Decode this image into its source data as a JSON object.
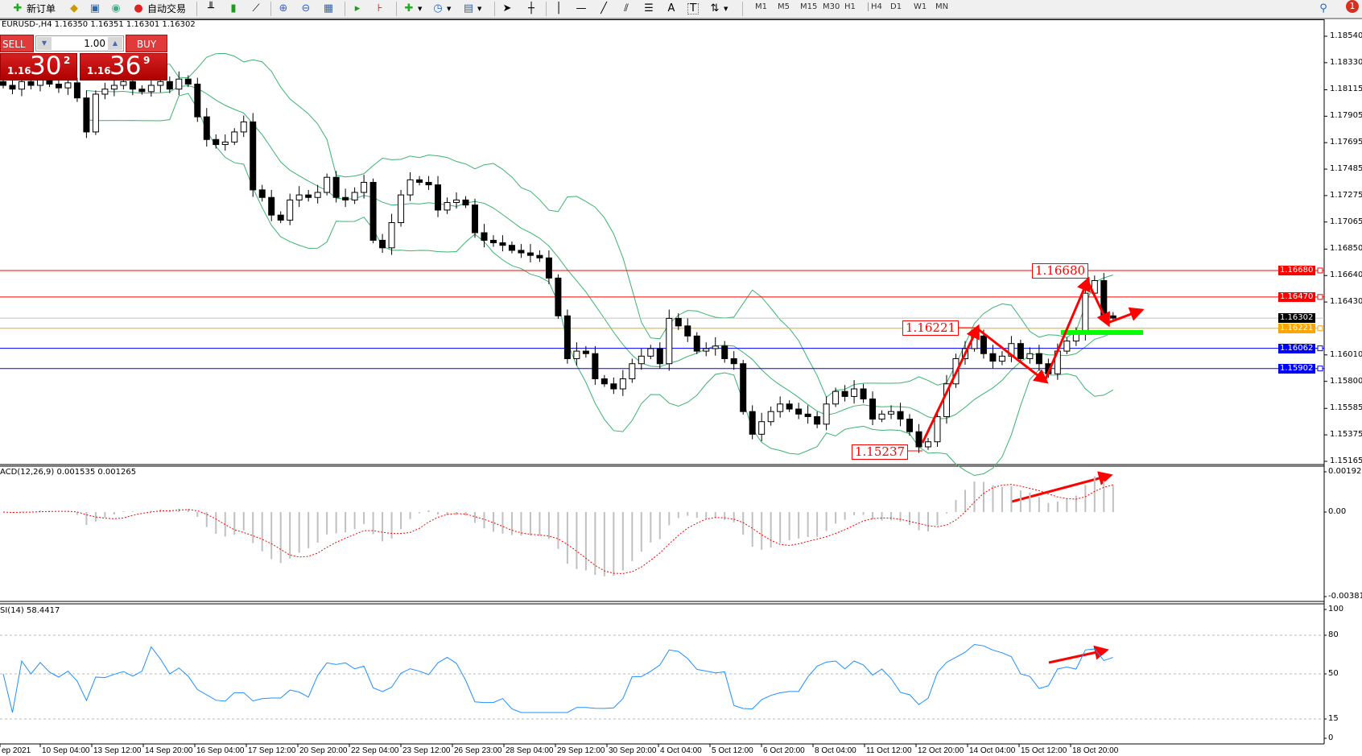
{
  "toolbar": {
    "new_order_label": "新订单",
    "auto_trading_label": "自动交易",
    "icons": [
      "new-order-icon",
      "metaeditor-icon",
      "market-icon",
      "signals-icon",
      "auto-trading-icon",
      "bar-chart-icon",
      "candlestick-icon",
      "line-chart-icon",
      "zoom-in-icon",
      "zoom-out-icon",
      "tile-windows-icon",
      "auto-scroll-icon",
      "chart-shift-icon",
      "indicators-icon",
      "periods-icon",
      "templates-icon",
      "cursor-icon",
      "crosshair-icon",
      "vertical-line-icon",
      "horizontal-line-icon",
      "trendline-icon",
      "equidistant-channel-icon",
      "fibonacci-icon",
      "text-icon",
      "text-label-icon",
      "arrows-icon",
      "search-icon",
      "notification-icon"
    ],
    "text_tool": "A",
    "label_tool": "T",
    "timeframes": [
      "M1",
      "M5",
      "M15",
      "M30",
      "H1",
      "H4",
      "D1",
      "W1",
      "MN"
    ],
    "active_timeframe": "H4",
    "notification_count": "1"
  },
  "chart_header": "EURUSD-,H4  1.16350 1.16351 1.16301 1.16302",
  "one_click": {
    "sell_label": "SELL",
    "buy_label": "BUY",
    "lot": "1.00",
    "sell_price": {
      "prefix": "1.16",
      "big": "30",
      "sup": "2"
    },
    "buy_price": {
      "prefix": "1.16",
      "big": "36",
      "sup": "9"
    }
  },
  "chart_data": {
    "type": "candlestick",
    "symbol": "EURUSD-",
    "timeframe": "H4",
    "price_ticks": [
      "1.18540",
      "1.18330",
      "1.18115",
      "1.17905",
      "1.17695",
      "1.17485",
      "1.17275",
      "1.17065",
      "1.16850",
      "1.16640",
      "1.16430",
      "1.16010",
      "1.15800",
      "1.15585",
      "1.15375",
      "1.15165"
    ],
    "ylim": [
      1.15165,
      1.1854
    ],
    "time_labels": [
      "ep 2021",
      "10 Sep 04:00",
      "13 Sep 12:00",
      "14 Sep 20:00",
      "16 Sep 04:00",
      "17 Sep 12:00",
      "20 Sep 20:00",
      "22 Sep 04:00",
      "23 Sep 12:00",
      "26 Sep 23:00",
      "28 Sep 04:00",
      "29 Sep 12:00",
      "30 Sep 20:00",
      "4 Oct 04:00",
      "5 Oct 12:00",
      "6 Oct 20:00",
      "8 Oct 04:00",
      "11 Oct 12:00",
      "12 Oct 20:00",
      "14 Oct 04:00",
      "15 Oct 12:00",
      "18 Oct 20:00"
    ],
    "closes": [
      1.1815,
      1.1812,
      1.1818,
      1.1815,
      1.182,
      1.1816,
      1.1813,
      1.1817,
      1.1805,
      1.1778,
      1.1808,
      1.1812,
      1.1815,
      1.1818,
      1.1812,
      1.181,
      1.1815,
      1.1818,
      1.1812,
      1.182,
      1.1816,
      1.179,
      1.1772,
      1.1768,
      1.177,
      1.1778,
      1.1786,
      1.1732,
      1.1726,
      1.1712,
      1.1708,
      1.1724,
      1.1728,
      1.1726,
      1.173,
      1.1742,
      1.1726,
      1.1724,
      1.173,
      1.1738,
      1.1692,
      1.1686,
      1.1706,
      1.1728,
      1.174,
      1.1738,
      1.1736,
      1.1716,
      1.1722,
      1.1724,
      1.172,
      1.1698,
      1.1692,
      1.169,
      1.1688,
      1.1684,
      1.1682,
      1.168,
      1.1678,
      1.1662,
      1.1632,
      1.1598,
      1.1604,
      1.1602,
      1.1582,
      1.1578,
      1.1574,
      1.1582,
      1.1594,
      1.16,
      1.1606,
      1.1594,
      1.163,
      1.1624,
      1.1616,
      1.1604,
      1.1606,
      1.1608,
      1.1598,
      1.1594,
      1.1556,
      1.1538,
      1.1548,
      1.1556,
      1.1562,
      1.1558,
      1.1554,
      1.1552,
      1.1546,
      1.1562,
      1.1572,
      1.1568,
      1.1574,
      1.1566,
      1.155,
      1.1554,
      1.1556,
      1.155,
      1.154,
      1.1528,
      1.1532,
      1.1552,
      1.1578,
      1.1598,
      1.1606,
      1.1616,
      1.1602,
      1.1596,
      1.16,
      1.161,
      1.1598,
      1.1602,
      1.1594,
      1.1586,
      1.1604,
      1.1612,
      1.1618,
      1.165,
      1.166,
      1.1632,
      1.16302
    ],
    "horizontal_lines": [
      {
        "price": "1.16680",
        "color": "#ff0000"
      },
      {
        "price": "1.16470",
        "color": "#ff0000"
      },
      {
        "price": "1.16302",
        "color": "#c0c0c0",
        "label_bg": "#000000"
      },
      {
        "price": "1.16221",
        "color": "#ffa500"
      },
      {
        "price": "1.16062",
        "color": "#0000ff"
      },
      {
        "price": "1.15902",
        "color": "#0000ff"
      }
    ],
    "annotations": [
      "1.16680",
      "1.16221",
      "1.15237"
    ],
    "bollinger_color": "#3cb371",
    "support_zone_color": "#00ff00",
    "arrow_color": "#ff0000",
    "macd": {
      "label": "ACD(12,26,9) 0.001535 0.001265",
      "ticks": [
        "0.001921",
        "0.00",
        "-0.003814"
      ],
      "ylim": [
        -0.003814,
        0.001921
      ],
      "histogram_color": "#c0c0c0",
      "signal_color": "#ff0000"
    },
    "rsi": {
      "label": "SI(14) 58.4417",
      "ticks": [
        "100",
        "80",
        "50",
        "15",
        "0"
      ],
      "levels": [
        80,
        50,
        15
      ],
      "line_color": "#1e90ff"
    }
  }
}
